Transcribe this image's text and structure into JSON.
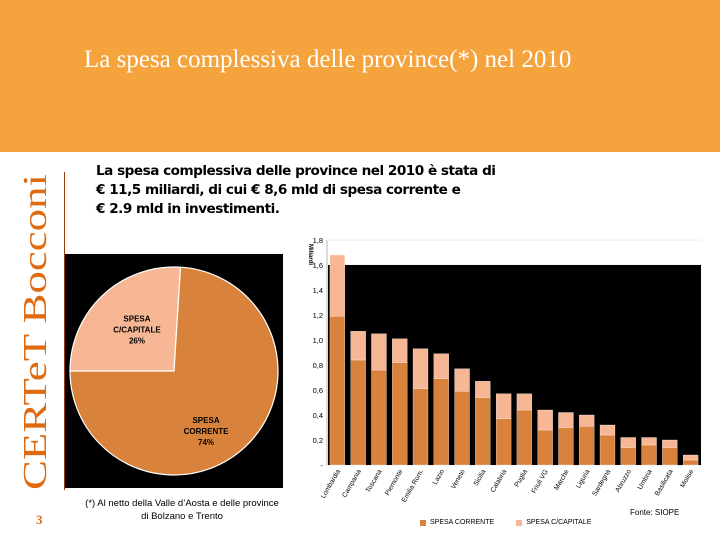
{
  "slide": {
    "title": "La spesa complessiva delle province(*) nel 2010",
    "brand": "CERTeT Bocconi",
    "page_number": "3",
    "intro_lines": [
      "La spesa complessiva delle province  nel 2010 è stata di",
      "€ 11,5 miliardi, di cui € 8,6 mld di spesa corrente e",
      "€ 2.9 mld in investimenti."
    ],
    "footnote_line1": "(*) Al netto della Valle d’Aosta e delle province",
    "footnote_line2": "di Bolzano e Trento",
    "source": "Fonte: SIOPE"
  },
  "colors": {
    "header": "#F5A33C",
    "corrente": "#D9823B",
    "capitale": "#F8B794",
    "brand": "#E06A10"
  },
  "chart_data": [
    {
      "type": "pie",
      "slices": [
        {
          "label": "SPESA C/CAPITALE",
          "percent_label": "26%",
          "value": 26
        },
        {
          "label": "SPESA CORRENTE",
          "percent_label": "74%",
          "value": 74
        }
      ]
    },
    {
      "type": "bar",
      "stacked": true,
      "ylabel": "Miliardi",
      "ylim": [
        0,
        1.8
      ],
      "yticks": [
        "-",
        "0,2",
        "0,4",
        "0,6",
        "0,8",
        "1,0",
        "1,2",
        "1,4",
        "1,6",
        "1,8"
      ],
      "categories": [
        "Lombardia",
        "Campania",
        "Toscana",
        "Piemonte",
        "Emilia Rom.",
        "Lazio",
        "Veneto",
        "Sicilia",
        "Calabria",
        "Puglia",
        "Friuli VG",
        "Marche",
        "Liguria",
        "Sardegna",
        "Abruzzo",
        "Umbria",
        "Basilicata",
        "Molise"
      ],
      "series": [
        {
          "name": "SPESA CORRENTE",
          "values": [
            1.19,
            0.84,
            0.76,
            0.82,
            0.61,
            0.69,
            0.59,
            0.54,
            0.37,
            0.44,
            0.28,
            0.3,
            0.31,
            0.24,
            0.14,
            0.16,
            0.14,
            0.04
          ]
        },
        {
          "name": "SPESA C/CAPITALE",
          "values": [
            0.49,
            0.23,
            0.29,
            0.19,
            0.32,
            0.2,
            0.18,
            0.13,
            0.2,
            0.13,
            0.16,
            0.12,
            0.09,
            0.08,
            0.08,
            0.06,
            0.06,
            0.04
          ]
        }
      ],
      "legend_position": "bottom"
    }
  ]
}
